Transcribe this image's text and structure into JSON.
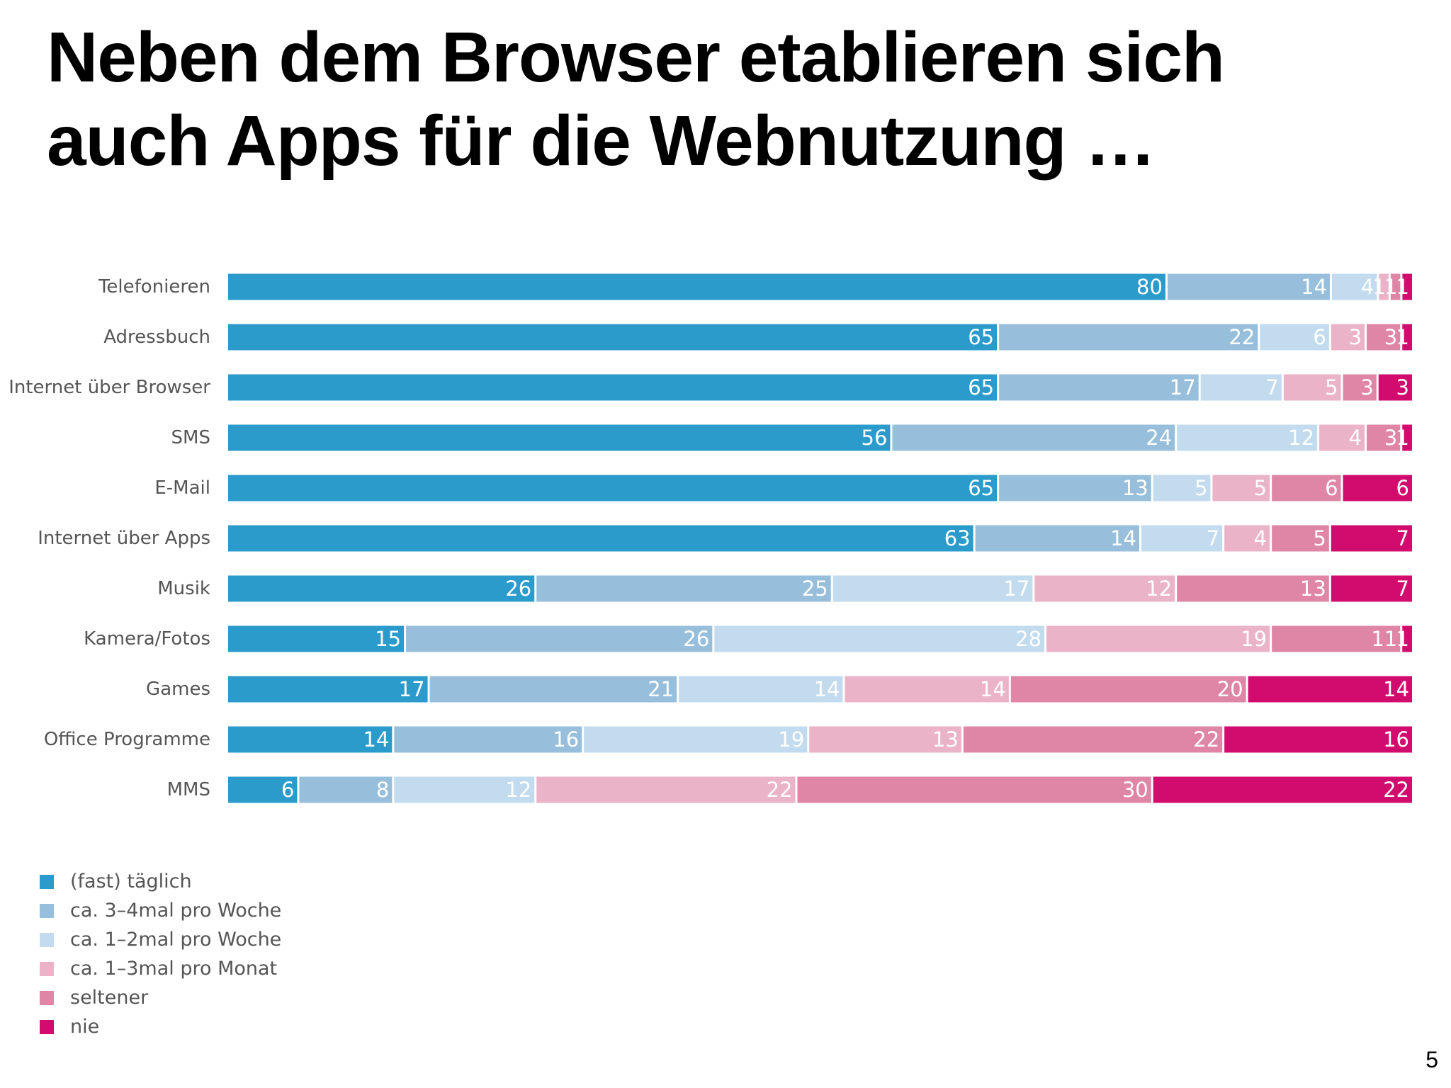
{
  "slide": {
    "title_line1": "Neben dem Browser etablieren sich",
    "title_line2": "auch Apps für die Webnutzung …",
    "page_number": "5"
  },
  "chart_data": {
    "type": "bar",
    "orientation": "horizontal",
    "stacked": true,
    "unit": "%",
    "grid": false,
    "legend_position": "bottom-left",
    "categories": [
      "Telefonieren",
      "Adressbuch",
      "Internet über Browser",
      "SMS",
      "E-Mail",
      "Internet über Apps",
      "Musik",
      "Kamera/Fotos",
      "Games",
      "Office Programme",
      "MMS"
    ],
    "series": [
      {
        "name": "(fast) täglich",
        "color": "#2b9bcb",
        "values": [
          80,
          65,
          65,
          56,
          65,
          63,
          26,
          15,
          17,
          14,
          6
        ]
      },
      {
        "name": "ca. 3–4mal pro Woche",
        "color": "#97bfdc",
        "values": [
          14,
          22,
          17,
          24,
          13,
          14,
          25,
          26,
          21,
          16,
          8
        ]
      },
      {
        "name": "ca. 1–2mal pro Woche",
        "color": "#c2dbee",
        "values": [
          4,
          6,
          7,
          12,
          5,
          7,
          17,
          28,
          14,
          19,
          12
        ]
      },
      {
        "name": "ca. 1–3mal pro Monat",
        "color": "#ebb3c8",
        "values": [
          1,
          3,
          5,
          4,
          5,
          4,
          12,
          19,
          14,
          13,
          22
        ]
      },
      {
        "name": "seltener",
        "color": "#df86a6",
        "values": [
          1,
          3,
          3,
          3,
          6,
          5,
          13,
          11,
          20,
          22,
          30
        ]
      },
      {
        "name": "nie",
        "color": "#d20b6e",
        "values": [
          1,
          1,
          3,
          1,
          6,
          7,
          7,
          1,
          14,
          16,
          22
        ]
      }
    ]
  }
}
